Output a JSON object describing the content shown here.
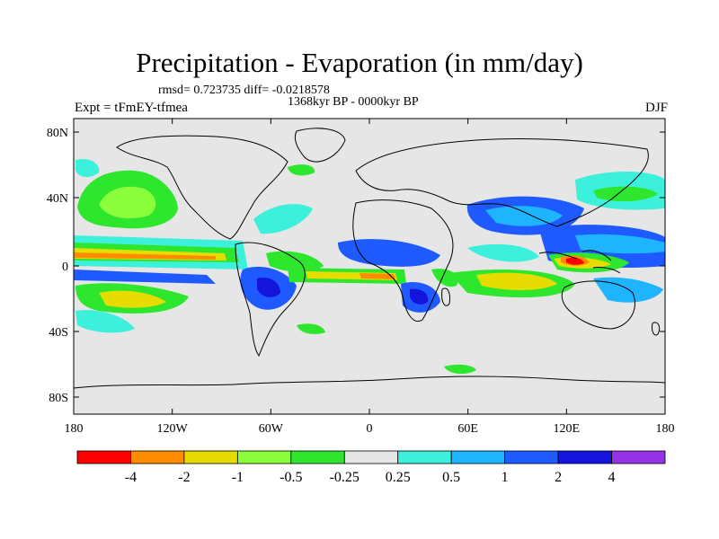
{
  "title": "Precipitation - Evaporation (in mm/day)",
  "stats": "rmsd= 0.723735 diff= -0.0218578",
  "period": "1368kyr BP - 0000kyr BP",
  "experiment": "Expt = tFmEY-tfmea",
  "season": "DJF",
  "map": {
    "lon_ticks": [
      "180",
      "120W",
      "60W",
      "0",
      "60E",
      "120E",
      "180"
    ],
    "lat_ticks": [
      "80N",
      "40N",
      "0",
      "40S",
      "80S"
    ],
    "background_color": "#e6e6e6"
  },
  "colorbar": {
    "colors": [
      "#ff0000",
      "#ff8c00",
      "#e6dc00",
      "#8cff3c",
      "#2ee62e",
      "#e6e6e6",
      "#3cf0dc",
      "#1eb4ff",
      "#1e5aff",
      "#1414dc",
      "#9632e6"
    ],
    "labels": [
      "-4",
      "-2",
      "-1",
      "-0.5",
      "-0.25",
      "0.25",
      "0.5",
      "1",
      "2",
      "4"
    ]
  }
}
